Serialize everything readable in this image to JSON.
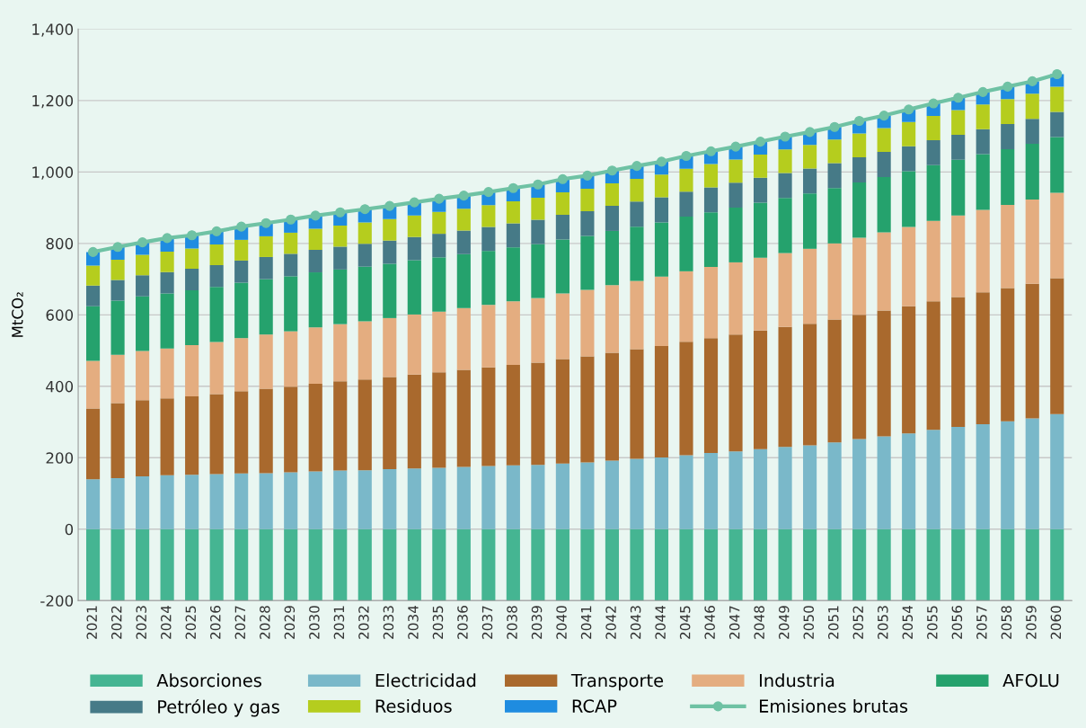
{
  "chart_data": {
    "type": "bar",
    "stacked": true,
    "ylabel": "MtCO₂",
    "categories": [
      "2021",
      "2022",
      "2023",
      "2024",
      "2025",
      "2026",
      "2027",
      "2028",
      "2029",
      "2030",
      "2031",
      "2032",
      "2033",
      "2034",
      "2035",
      "2036",
      "2037",
      "2038",
      "2039",
      "2040",
      "2041",
      "2042",
      "2043",
      "2044",
      "2045",
      "2046",
      "2047",
      "2048",
      "2049",
      "2050",
      "2051",
      "2052",
      "2053",
      "2054",
      "2055",
      "2056",
      "2057",
      "2058",
      "2059",
      "2060"
    ],
    "series": [
      {
        "name": "Absorciones",
        "color": "#45b592",
        "values": [
          -200,
          -200,
          -200,
          -200,
          -200,
          -200,
          -200,
          -200,
          -200,
          -200,
          -200,
          -200,
          -200,
          -200,
          -200,
          -200,
          -200,
          -200,
          -200,
          -200,
          -200,
          -200,
          -200,
          -200,
          -200,
          -200,
          -200,
          -200,
          -200,
          -200,
          -200,
          -200,
          -200,
          -200,
          -200,
          -200,
          -200,
          -200,
          -200,
          -200
        ]
      },
      {
        "name": "Electricidad",
        "color": "#7ab8c9",
        "values": [
          140,
          143,
          148,
          151,
          152,
          154,
          156,
          157,
          159,
          162,
          164,
          165,
          168,
          170,
          172,
          174,
          177,
          179,
          180,
          184,
          187,
          192,
          197,
          201,
          207,
          213,
          218,
          224,
          230,
          235,
          243,
          252,
          260,
          268,
          278,
          286,
          294,
          302,
          310,
          322
        ]
      },
      {
        "name": "Transporte",
        "color": "#a9692d",
        "values": [
          198,
          210,
          213,
          215,
          220,
          224,
          230,
          236,
          240,
          245,
          250,
          254,
          258,
          263,
          267,
          272,
          276,
          281,
          286,
          292,
          297,
          302,
          307,
          312,
          318,
          322,
          327,
          332,
          336,
          340,
          344,
          348,
          352,
          356,
          360,
          364,
          369,
          373,
          377,
          381
        ]
      },
      {
        "name": "Industria",
        "color": "#e4ad80",
        "values": [
          133,
          135,
          138,
          140,
          143,
          146,
          149,
          152,
          155,
          158,
          160,
          163,
          165,
          168,
          170,
          173,
          175,
          178,
          181,
          184,
          186,
          189,
          191,
          194,
          197,
          199,
          202,
          204,
          207,
          210,
          213,
          216,
          219,
          222,
          225,
          228,
          231,
          233,
          236,
          239
        ]
      },
      {
        "name": "AFOLU",
        "color": "#25a26d",
        "values": [
          153,
          152,
          153,
          154,
          154,
          154,
          155,
          155,
          154,
          154,
          153,
          153,
          152,
          152,
          152,
          151,
          151,
          151,
          151,
          151,
          151,
          152,
          152,
          152,
          153,
          153,
          153,
          154,
          154,
          155,
          155,
          155,
          155,
          156,
          156,
          156,
          156,
          156,
          156,
          156
        ]
      },
      {
        "name": "Petróleo y gas",
        "color": "#467a87",
        "values": [
          58,
          58,
          59,
          60,
          60,
          61,
          62,
          62,
          63,
          63,
          64,
          64,
          65,
          65,
          66,
          66,
          67,
          67,
          68,
          69,
          69,
          70,
          70,
          70,
          70,
          70,
          70,
          70,
          70,
          70,
          70,
          70,
          70,
          70,
          70,
          70,
          70,
          70,
          70,
          70
        ]
      },
      {
        "name": "Residuos",
        "color": "#b5cd1e",
        "values": [
          56,
          56,
          57,
          57,
          57,
          58,
          58,
          58,
          59,
          59,
          59,
          60,
          60,
          60,
          61,
          61,
          61,
          62,
          62,
          63,
          63,
          63,
          64,
          64,
          64,
          65,
          65,
          65,
          66,
          66,
          66,
          67,
          67,
          68,
          68,
          69,
          69,
          70,
          70,
          71
        ]
      },
      {
        "name": "RCAP",
        "color": "#1f8ce0",
        "values": [
          38,
          36,
          35,
          38,
          37,
          37,
          37,
          37,
          37,
          37,
          37,
          37,
          37,
          37,
          37,
          37,
          37,
          37,
          37,
          37,
          37,
          36,
          36,
          36,
          36,
          36,
          36,
          36,
          36,
          36,
          35,
          35,
          35,
          35,
          35,
          35,
          35,
          35,
          35,
          35
        ]
      },
      {
        "name": "Emisiones brutas",
        "type": "line",
        "marker": "circle",
        "color": "#6fc2a4",
        "values": [
          776,
          790,
          803,
          815,
          823,
          834,
          847,
          857,
          867,
          878,
          887,
          896,
          905,
          915,
          925,
          934,
          944,
          955,
          965,
          980,
          990,
          1004,
          1017,
          1029,
          1045,
          1058,
          1071,
          1085,
          1099,
          1112,
          1126,
          1143,
          1158,
          1175,
          1192,
          1208,
          1224,
          1239,
          1254,
          1274
        ]
      }
    ],
    "ylim": [
      -200,
      1400
    ],
    "yticks": [
      {
        "value": -200,
        "label": "-200"
      },
      0,
      200,
      400,
      600,
      800,
      {
        "value": 1000,
        "label": "1,000"
      },
      {
        "value": 1200,
        "label": "1,200"
      },
      {
        "value": 1400,
        "label": "1,400"
      }
    ],
    "grid": "y",
    "legend": "bottom"
  }
}
